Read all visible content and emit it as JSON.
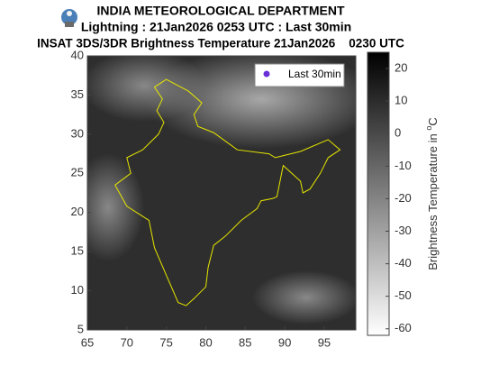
{
  "header": {
    "title": "INDIA METEOROLOGICAL DEPARTMENT",
    "subtitle": "Lightning : 21Jan2026 0253 UTC : Last 30min",
    "product": "INSAT 3DS/3DR Brightness Temperature 21Jan2026    0230 UTC"
  },
  "map": {
    "xlim": [
      65,
      99
    ],
    "ylim": [
      5,
      40
    ],
    "xticks": [
      65,
      70,
      75,
      80,
      85,
      90,
      95
    ],
    "yticks": [
      5,
      10,
      15,
      20,
      25,
      30,
      35,
      40
    ],
    "legend": {
      "label": "Last 30min",
      "color": "#6a2fd6"
    }
  },
  "colorbar": {
    "lim": [
      -62,
      25
    ],
    "ticks": [
      20,
      10,
      0,
      -10,
      -20,
      -30,
      -40,
      -50,
      -60
    ],
    "label": "Brightness Temperature in",
    "unit_sup": "o",
    "unit": "C"
  }
}
